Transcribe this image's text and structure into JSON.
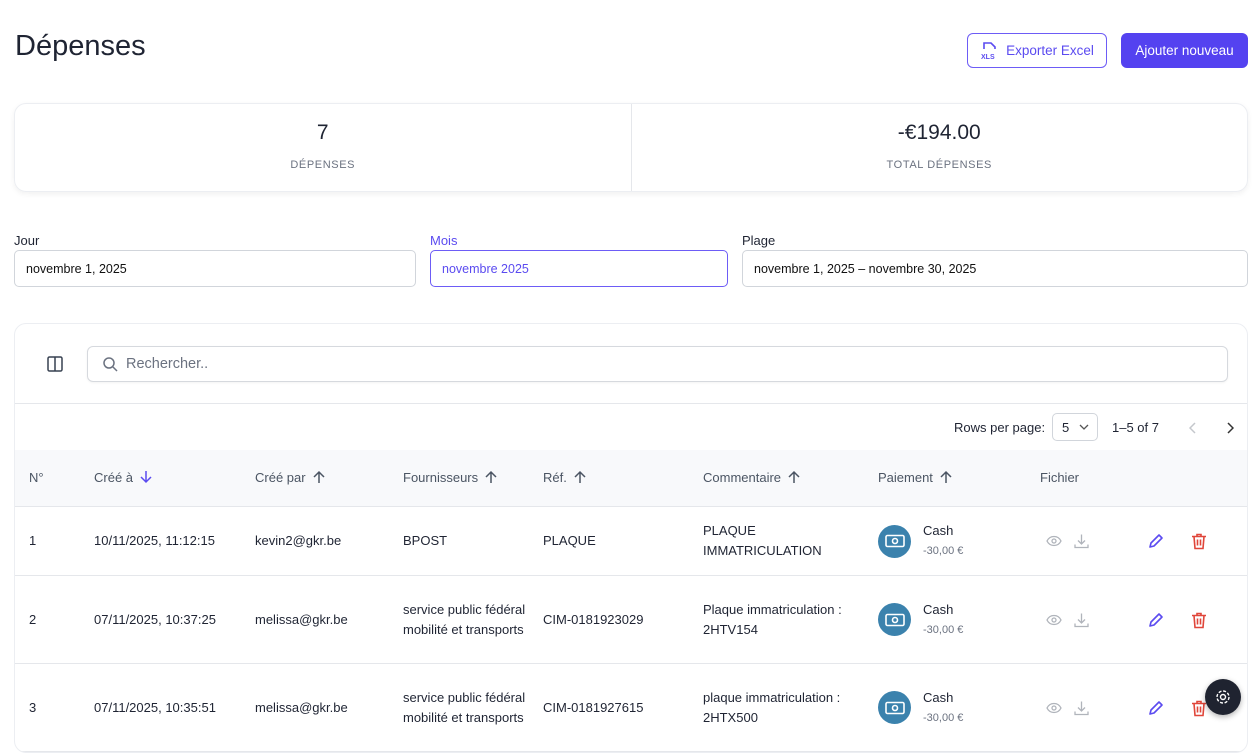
{
  "header": {
    "title": "Dépenses",
    "export_label": "Exporter Excel",
    "add_label": "Ajouter nouveau"
  },
  "stats": [
    {
      "value": "7",
      "label": "DÉPENSES"
    },
    {
      "value": "-€194.00",
      "label": "TOTAL DÉPENSES"
    }
  ],
  "filters": {
    "day": {
      "label": "Jour",
      "value": "novembre 1, 2025"
    },
    "month": {
      "label": "Mois",
      "value": "novembre 2025"
    },
    "range": {
      "label": "Plage",
      "value": "novembre 1, 2025 – novembre 30, 2025"
    }
  },
  "search": {
    "placeholder": "Rechercher.."
  },
  "pagination": {
    "rows_label": "Rows per page:",
    "rows_value": "5",
    "range": "1–5 of 7"
  },
  "columns": [
    "N°",
    "Créé à",
    "Créé par",
    "Fournisseurs",
    "Réf.",
    "Commentaire",
    "Paiement",
    "Fichier"
  ],
  "rows": [
    {
      "n": "1",
      "created": "10/11/2025, 11:12:15",
      "by": "kevin2@gkr.be",
      "supplier": "BPOST",
      "ref": "PLAQUE",
      "comment": "PLAQUE IMMATRICULATION",
      "method": "Cash",
      "amount": "-30,00 €"
    },
    {
      "n": "2",
      "created": "07/11/2025, 10:37:25",
      "by": "melissa@gkr.be",
      "supplier": "service public fédéral mobilité et transports",
      "ref": "CIM-0181923029",
      "comment": "Plaque immatriculation : 2HTV154",
      "method": "Cash",
      "amount": "-30,00 €"
    },
    {
      "n": "3",
      "created": "07/11/2025, 10:35:51",
      "by": "melissa@gkr.be",
      "supplier": "service public fédéral mobilité et transports",
      "ref": "CIM-0181927615",
      "comment": "plaque immatriculation : 2HTX500",
      "method": "Cash",
      "amount": "-30,00 €"
    }
  ],
  "colors": {
    "accent": "#5442f0",
    "danger": "#e0463a",
    "pay": "#3b82ad"
  }
}
